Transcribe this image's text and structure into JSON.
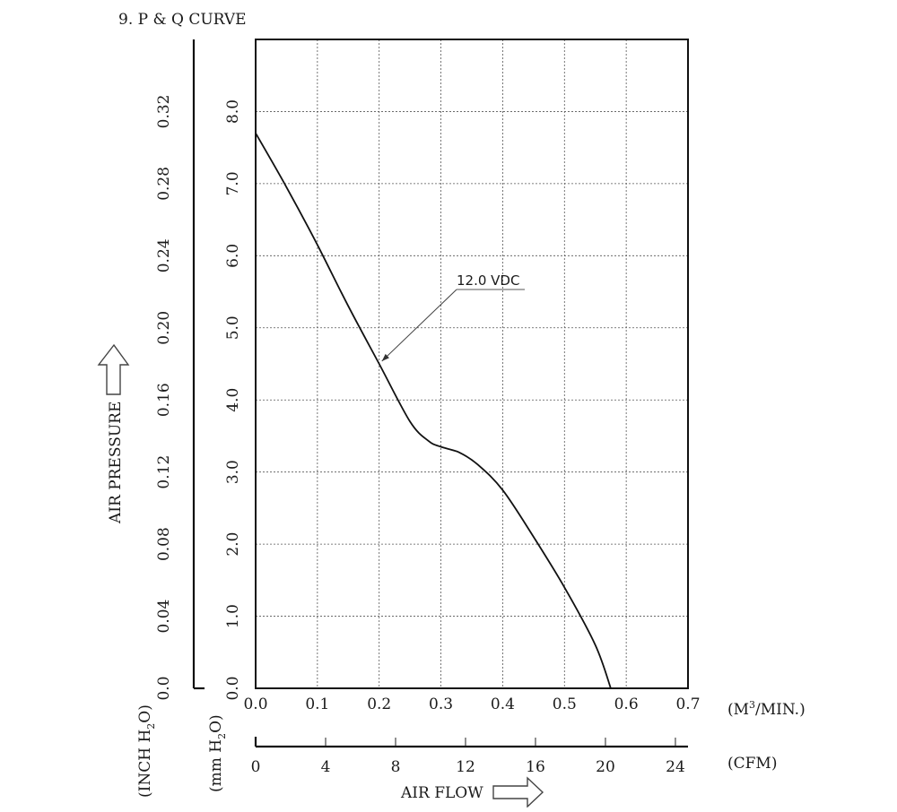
{
  "chart_data": {
    "type": "line",
    "title": "9. P & Q CURVE",
    "x_flow_m3min": {
      "ticks": [
        "0.0",
        "0.1",
        "0.2",
        "0.3",
        "0.4",
        "0.5",
        "0.6",
        "0.7"
      ],
      "range": [
        0,
        0.7
      ],
      "unit": "(M³/MIN.)",
      "unit_base": "(M",
      "unit_sup": "3",
      "unit_rest": "/MIN.)"
    },
    "x_flow_cfm": {
      "ticks": [
        "0",
        "4",
        "8",
        "12",
        "16",
        "20",
        "24"
      ],
      "range": [
        0,
        24.72
      ],
      "unit": "(CFM)"
    },
    "xlabel": "AIR FLOW",
    "ylabel": "AIR PRESSURE",
    "y_mmh2o": {
      "ticks": [
        "0.0",
        "1.0",
        "2.0",
        "3.0",
        "4.0",
        "5.0",
        "6.0",
        "7.0",
        "8.0"
      ],
      "range": [
        0,
        9.0
      ],
      "unit": "(mm H₂O)",
      "unit_a": "(mm H",
      "unit_sub": "2",
      "unit_b": "O)"
    },
    "y_inch": {
      "ticks": [
        "0.0",
        "0.04",
        "0.08",
        "0.12",
        "0.16",
        "0.20",
        "0.24",
        "0.28",
        "0.32"
      ],
      "unit": "(INCH H₂O)",
      "unit_a": "(INCH H",
      "unit_sub": "2",
      "unit_b": "O)"
    },
    "grid": true,
    "series": [
      {
        "name": "12.0 VDC",
        "points": [
          [
            0.0,
            7.7
          ],
          [
            0.05,
            6.95
          ],
          [
            0.1,
            6.15
          ],
          [
            0.15,
            5.3
          ],
          [
            0.2,
            4.5
          ],
          [
            0.25,
            3.7
          ],
          [
            0.28,
            3.43
          ],
          [
            0.3,
            3.35
          ],
          [
            0.33,
            3.27
          ],
          [
            0.36,
            3.1
          ],
          [
            0.4,
            2.75
          ],
          [
            0.45,
            2.1
          ],
          [
            0.5,
            1.4
          ],
          [
            0.55,
            0.6
          ],
          [
            0.575,
            0.0
          ]
        ]
      }
    ],
    "annotation": {
      "text": "12.0 VDC",
      "points_to": [
        0.2,
        4.5
      ]
    }
  }
}
